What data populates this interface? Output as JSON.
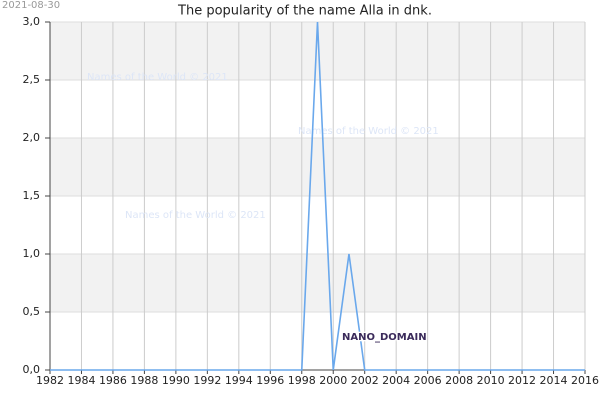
{
  "chart_data": {
    "type": "line",
    "title": "The popularity of the name Alla in dnk.",
    "date_stamp": "2021-08-30",
    "watermarks": [
      "Names of the World © 2021",
      "Names of the World © 2021",
      "Names of the World © 2021"
    ],
    "annotation": "NANO_DOMAIN",
    "x": [
      1982,
      1983,
      1984,
      1985,
      1986,
      1987,
      1988,
      1989,
      1990,
      1991,
      1992,
      1993,
      1994,
      1995,
      1996,
      1997,
      1998,
      1999,
      2000,
      2001,
      2002,
      2003,
      2004,
      2005,
      2006,
      2007,
      2008,
      2009,
      2010,
      2011,
      2012,
      2013,
      2014,
      2015,
      2016
    ],
    "series": [
      {
        "color": "#6aa8ec",
        "values": [
          0,
          0,
          0,
          0,
          0,
          0,
          0,
          0,
          0,
          0,
          0,
          0,
          0,
          0,
          0,
          0,
          0,
          3,
          0,
          1,
          0,
          0,
          0,
          0,
          0,
          0,
          0,
          0,
          0,
          0,
          0,
          0,
          0,
          0,
          0
        ]
      }
    ],
    "xlim": [
      1982,
      2016
    ],
    "xticks": [
      1982,
      1984,
      1986,
      1988,
      1990,
      1992,
      1994,
      1996,
      1998,
      2000,
      2002,
      2004,
      2006,
      2008,
      2010,
      2012,
      2014,
      2016
    ],
    "ylim": [
      0,
      3
    ],
    "yticks": [
      {
        "value": 0,
        "label": "0,0"
      },
      {
        "value": 0.5,
        "label": "0,5"
      },
      {
        "value": 1,
        "label": "1,0"
      },
      {
        "value": 1.5,
        "label": "1,5"
      },
      {
        "value": 2,
        "label": "2,0"
      },
      {
        "value": 2.5,
        "label": "2,5"
      },
      {
        "value": 3,
        "label": "3,0"
      }
    ],
    "grid": true
  }
}
